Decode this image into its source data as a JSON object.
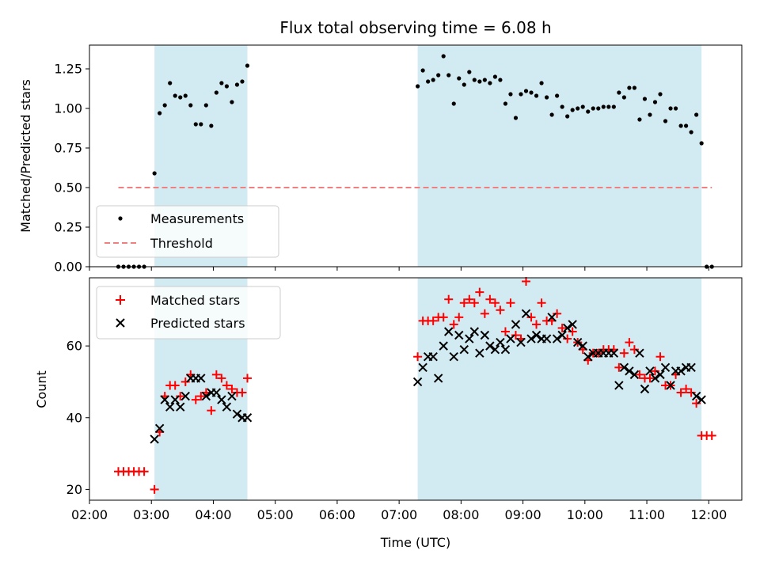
{
  "chart_data": [
    {
      "type": "scatter",
      "title": "Flux total observing time = 6.08 h",
      "ylabel": "Matched/Predicted stars",
      "xlabel": "",
      "xlim": [
        "02:00",
        "12:32"
      ],
      "ylim": [
        0,
        1.4
      ],
      "yticks": [
        "0.00",
        "0.25",
        "0.50",
        "0.75",
        "1.00",
        "1.25"
      ],
      "grid": false,
      "legend_position": "lower-left",
      "shaded_intervals": [
        [
          "03:03",
          "04:33"
        ],
        [
          "07:18",
          "11:53"
        ]
      ],
      "shade_color": "#add8e6",
      "series": [
        {
          "name": "Measurements",
          "marker": "dot",
          "color": "#000000",
          "points": [
            [
              "02:28",
              0.0
            ],
            [
              "02:33",
              0.0
            ],
            [
              "02:38",
              0.0
            ],
            [
              "02:43",
              0.0
            ],
            [
              "02:48",
              0.0
            ],
            [
              "02:53",
              0.0
            ],
            [
              "03:03",
              0.59
            ],
            [
              "03:08",
              0.97
            ],
            [
              "03:13",
              1.02
            ],
            [
              "03:18",
              1.16
            ],
            [
              "03:23",
              1.08
            ],
            [
              "03:28",
              1.07
            ],
            [
              "03:33",
              1.08
            ],
            [
              "03:38",
              1.02
            ],
            [
              "03:43",
              0.9
            ],
            [
              "03:48",
              0.9
            ],
            [
              "03:53",
              1.02
            ],
            [
              "03:58",
              0.89
            ],
            [
              "04:03",
              1.1
            ],
            [
              "04:08",
              1.16
            ],
            [
              "04:13",
              1.14
            ],
            [
              "04:18",
              1.04
            ],
            [
              "04:23",
              1.15
            ],
            [
              "04:28",
              1.17
            ],
            [
              "04:33",
              1.27
            ],
            [
              "07:18",
              1.14
            ],
            [
              "07:23",
              1.24
            ],
            [
              "07:28",
              1.17
            ],
            [
              "07:33",
              1.18
            ],
            [
              "07:38",
              1.21
            ],
            [
              "07:43",
              1.33
            ],
            [
              "07:48",
              1.21
            ],
            [
              "07:53",
              1.03
            ],
            [
              "07:58",
              1.19
            ],
            [
              "08:03",
              1.15
            ],
            [
              "08:08",
              1.23
            ],
            [
              "08:13",
              1.18
            ],
            [
              "08:18",
              1.17
            ],
            [
              "08:23",
              1.18
            ],
            [
              "08:28",
              1.16
            ],
            [
              "08:33",
              1.2
            ],
            [
              "08:38",
              1.18
            ],
            [
              "08:43",
              1.03
            ],
            [
              "08:48",
              1.09
            ],
            [
              "08:53",
              0.94
            ],
            [
              "08:58",
              1.09
            ],
            [
              "09:03",
              1.11
            ],
            [
              "09:08",
              1.1
            ],
            [
              "09:13",
              1.08
            ],
            [
              "09:18",
              1.16
            ],
            [
              "09:23",
              1.07
            ],
            [
              "09:28",
              0.96
            ],
            [
              "09:33",
              1.08
            ],
            [
              "09:38",
              1.01
            ],
            [
              "09:43",
              0.95
            ],
            [
              "09:48",
              0.99
            ],
            [
              "09:53",
              1.0
            ],
            [
              "09:58",
              1.01
            ],
            [
              "10:03",
              0.98
            ],
            [
              "10:08",
              1.0
            ],
            [
              "10:13",
              1.0
            ],
            [
              "10:18",
              1.01
            ],
            [
              "10:23",
              1.01
            ],
            [
              "10:28",
              1.01
            ],
            [
              "10:33",
              1.1
            ],
            [
              "10:38",
              1.07
            ],
            [
              "10:43",
              1.13
            ],
            [
              "10:48",
              1.13
            ],
            [
              "10:53",
              0.93
            ],
            [
              "10:58",
              1.06
            ],
            [
              "11:03",
              0.96
            ],
            [
              "11:08",
              1.04
            ],
            [
              "11:13",
              1.09
            ],
            [
              "11:18",
              0.92
            ],
            [
              "11:23",
              1.0
            ],
            [
              "11:28",
              1.0
            ],
            [
              "11:33",
              0.89
            ],
            [
              "11:38",
              0.89
            ],
            [
              "11:43",
              0.85
            ],
            [
              "11:48",
              0.96
            ],
            [
              "11:53",
              0.78
            ],
            [
              "11:58",
              0.0
            ],
            [
              "12:03",
              0.0
            ]
          ]
        },
        {
          "name": "Threshold",
          "marker": "dashed-line",
          "color": "#f08080",
          "points": [
            [
              "02:28",
              0.5
            ],
            [
              "12:03",
              0.5
            ]
          ]
        }
      ]
    },
    {
      "type": "scatter",
      "title": "",
      "ylabel": "Count",
      "xlabel": "Time (UTC)",
      "xlim": [
        "02:00",
        "12:32"
      ],
      "ylim": [
        17,
        79
      ],
      "yticks": [
        "20",
        "40",
        "60"
      ],
      "xticks": [
        "02:00",
        "03:00",
        "04:00",
        "05:00",
        "06:00",
        "07:00",
        "08:00",
        "09:00",
        "10:00",
        "11:00",
        "12:00"
      ],
      "grid": false,
      "legend_position": "upper-left",
      "shaded_intervals": [
        [
          "03:03",
          "04:33"
        ],
        [
          "07:18",
          "11:53"
        ]
      ],
      "shade_color": "#add8e6",
      "series": [
        {
          "name": "Matched stars",
          "marker": "plus",
          "color": "#ff0000",
          "points": [
            [
              "02:28",
              25
            ],
            [
              "02:33",
              25
            ],
            [
              "02:38",
              25
            ],
            [
              "02:43",
              25
            ],
            [
              "02:48",
              25
            ],
            [
              "02:53",
              25
            ],
            [
              "03:03",
              20
            ],
            [
              "03:08",
              36
            ],
            [
              "03:13",
              46
            ],
            [
              "03:18",
              49
            ],
            [
              "03:23",
              49
            ],
            [
              "03:28",
              46
            ],
            [
              "03:33",
              50
            ],
            [
              "03:38",
              52
            ],
            [
              "03:43",
              45
            ],
            [
              "03:48",
              46
            ],
            [
              "03:53",
              47
            ],
            [
              "03:58",
              42
            ],
            [
              "04:03",
              52
            ],
            [
              "04:08",
              51
            ],
            [
              "04:13",
              49
            ],
            [
              "04:18",
              48
            ],
            [
              "04:23",
              47
            ],
            [
              "04:28",
              47
            ],
            [
              "04:33",
              51
            ],
            [
              "07:18",
              57
            ],
            [
              "07:23",
              67
            ],
            [
              "07:28",
              67
            ],
            [
              "07:33",
              67
            ],
            [
              "07:38",
              68
            ],
            [
              "07:43",
              68
            ],
            [
              "07:48",
              73
            ],
            [
              "07:53",
              66
            ],
            [
              "07:58",
              68
            ],
            [
              "08:03",
              72
            ],
            [
              "08:08",
              73
            ],
            [
              "08:13",
              72
            ],
            [
              "08:18",
              75
            ],
            [
              "08:23",
              69
            ],
            [
              "08:28",
              73
            ],
            [
              "08:33",
              72
            ],
            [
              "08:38",
              70
            ],
            [
              "08:43",
              64
            ],
            [
              "08:48",
              72
            ],
            [
              "08:53",
              63
            ],
            [
              "08:58",
              62
            ],
            [
              "09:03",
              78
            ],
            [
              "09:08",
              68
            ],
            [
              "09:13",
              66
            ],
            [
              "09:18",
              72
            ],
            [
              "09:23",
              67
            ],
            [
              "09:28",
              67
            ],
            [
              "09:33",
              69
            ],
            [
              "09:38",
              65
            ],
            [
              "09:43",
              62
            ],
            [
              "09:48",
              64
            ],
            [
              "09:53",
              61
            ],
            [
              "09:58",
              59
            ],
            [
              "10:03",
              56
            ],
            [
              "10:08",
              58
            ],
            [
              "10:13",
              58
            ],
            [
              "10:18",
              59
            ],
            [
              "10:23",
              59
            ],
            [
              "10:28",
              59
            ],
            [
              "10:33",
              54
            ],
            [
              "10:38",
              58
            ],
            [
              "10:43",
              61
            ],
            [
              "10:48",
              59
            ],
            [
              "10:53",
              52
            ],
            [
              "10:58",
              51
            ],
            [
              "11:03",
              51
            ],
            [
              "11:08",
              53
            ],
            [
              "11:13",
              57
            ],
            [
              "11:18",
              49
            ],
            [
              "11:23",
              49
            ],
            [
              "11:28",
              52
            ],
            [
              "11:33",
              47
            ],
            [
              "11:38",
              48
            ],
            [
              "11:43",
              47
            ],
            [
              "11:48",
              44
            ],
            [
              "11:53",
              35
            ],
            [
              "11:58",
              35
            ],
            [
              "12:03",
              35
            ]
          ]
        },
        {
          "name": "Predicted stars",
          "marker": "x",
          "color": "#000000",
          "points": [
            [
              "03:03",
              34
            ],
            [
              "03:08",
              37
            ],
            [
              "03:13",
              45
            ],
            [
              "03:18",
              43
            ],
            [
              "03:23",
              45
            ],
            [
              "03:28",
              43
            ],
            [
              "03:33",
              46
            ],
            [
              "03:38",
              51
            ],
            [
              "03:43",
              51
            ],
            [
              "03:48",
              51
            ],
            [
              "03:53",
              46
            ],
            [
              "03:58",
              47
            ],
            [
              "04:03",
              47
            ],
            [
              "04:08",
              45
            ],
            [
              "04:13",
              43
            ],
            [
              "04:18",
              46
            ],
            [
              "04:23",
              41
            ],
            [
              "04:28",
              40
            ],
            [
              "04:33",
              40
            ],
            [
              "07:18",
              50
            ],
            [
              "07:23",
              54
            ],
            [
              "07:28",
              57
            ],
            [
              "07:33",
              57
            ],
            [
              "07:38",
              51
            ],
            [
              "07:43",
              60
            ],
            [
              "07:48",
              64
            ],
            [
              "07:53",
              57
            ],
            [
              "07:58",
              63
            ],
            [
              "08:03",
              59
            ],
            [
              "08:08",
              62
            ],
            [
              "08:13",
              64
            ],
            [
              "08:18",
              58
            ],
            [
              "08:23",
              63
            ],
            [
              "08:28",
              60
            ],
            [
              "08:33",
              59
            ],
            [
              "08:38",
              61
            ],
            [
              "08:43",
              59
            ],
            [
              "08:48",
              62
            ],
            [
              "08:53",
              66
            ],
            [
              "08:58",
              61
            ],
            [
              "09:03",
              69
            ],
            [
              "09:08",
              62
            ],
            [
              "09:13",
              63
            ],
            [
              "09:18",
              62
            ],
            [
              "09:23",
              62
            ],
            [
              "09:28",
              68
            ],
            [
              "09:33",
              62
            ],
            [
              "09:38",
              63
            ],
            [
              "09:43",
              65
            ],
            [
              "09:48",
              66
            ],
            [
              "09:53",
              61
            ],
            [
              "09:58",
              60
            ],
            [
              "10:03",
              57
            ],
            [
              "10:08",
              58
            ],
            [
              "10:13",
              58
            ],
            [
              "10:18",
              58
            ],
            [
              "10:23",
              58
            ],
            [
              "10:28",
              58
            ],
            [
              "10:33",
              49
            ],
            [
              "10:38",
              54
            ],
            [
              "10:43",
              53
            ],
            [
              "10:48",
              52
            ],
            [
              "10:53",
              58
            ],
            [
              "10:58",
              48
            ],
            [
              "11:03",
              53
            ],
            [
              "11:08",
              51
            ],
            [
              "11:13",
              52
            ],
            [
              "11:18",
              54
            ],
            [
              "11:23",
              49
            ],
            [
              "11:28",
              53
            ],
            [
              "11:33",
              53
            ],
            [
              "11:38",
              54
            ],
            [
              "11:43",
              54
            ],
            [
              "11:48",
              46
            ],
            [
              "11:53",
              45
            ]
          ]
        }
      ]
    }
  ]
}
